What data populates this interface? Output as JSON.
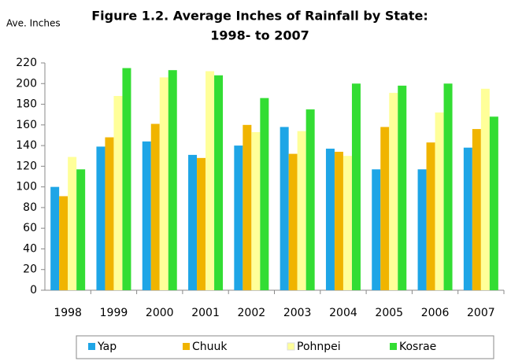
{
  "chart_data": {
    "type": "bar",
    "title": [
      "Figure 1.2. Average Inches of Rainfall by State:",
      "1998- to 2007"
    ],
    "y_label": "Ave. Inches",
    "categories": [
      "1998",
      "1999",
      "2000",
      "2001",
      "2002",
      "2003",
      "2004",
      "2005",
      "2006",
      "2007"
    ],
    "series": [
      {
        "name": "Yap",
        "color": "#1ea5e6",
        "values": [
          100,
          139,
          144,
          131,
          140,
          158,
          137,
          117,
          117,
          138
        ]
      },
      {
        "name": "Chuuk",
        "color": "#f0b400",
        "values": [
          91,
          148,
          161,
          128,
          160,
          132,
          134,
          158,
          143,
          156
        ]
      },
      {
        "name": "Pohnpei",
        "color": "#ffff99",
        "values": [
          129,
          188,
          206,
          212,
          153,
          154,
          130,
          191,
          172,
          195
        ]
      },
      {
        "name": "Kosrae",
        "color": "#33dd33",
        "values": [
          117,
          215,
          213,
          208,
          186,
          175,
          200,
          198,
          200,
          168
        ]
      }
    ],
    "ylim": [
      0,
      220
    ],
    "yticks": [
      0,
      20,
      40,
      60,
      80,
      100,
      120,
      140,
      160,
      180,
      200,
      220
    ],
    "grid": false,
    "legend": "bottom"
  }
}
